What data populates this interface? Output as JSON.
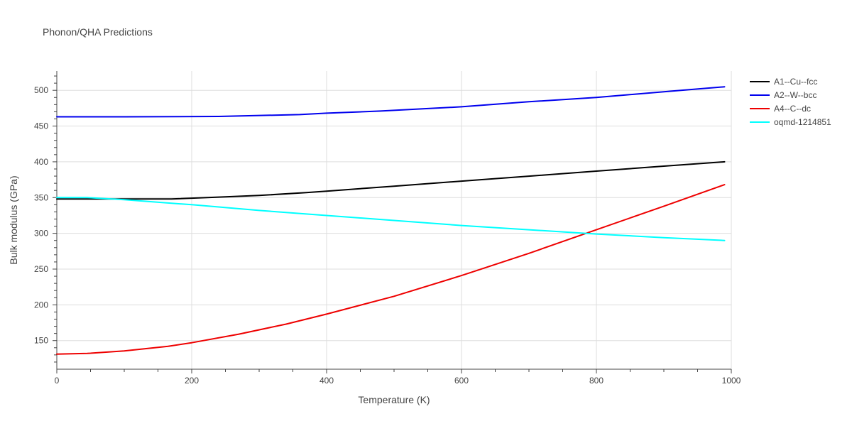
{
  "chart_data": {
    "type": "line",
    "title": "Phonon/QHA Predictions",
    "xlabel": "Temperature (K)",
    "ylabel": "Bulk modulus (GPa)",
    "xlim": [
      0,
      1000
    ],
    "ylim": [
      110,
      527
    ],
    "xticks": [
      0,
      200,
      400,
      600,
      800,
      1000
    ],
    "yticks": [
      150,
      200,
      250,
      300,
      350,
      400,
      450,
      500
    ],
    "grid": true,
    "legend_position": "top-right",
    "series": [
      {
        "name": "A1--Cu--fcc",
        "color": "#000000",
        "x": [
          0,
          50,
          100,
          170,
          250,
          300,
          370,
          400,
          500,
          600,
          700,
          800,
          900,
          990
        ],
        "y": [
          348,
          348,
          348,
          348,
          351,
          353,
          357,
          359,
          366,
          373,
          380,
          387,
          394,
          400
        ]
      },
      {
        "name": "A2--W--bcc",
        "color": "#0000ee",
        "x": [
          0,
          100,
          240,
          360,
          400,
          480,
          600,
          700,
          800,
          900,
          990
        ],
        "y": [
          463,
          463,
          463.5,
          466,
          468,
          471,
          477,
          484,
          490,
          498,
          505
        ]
      },
      {
        "name": "A4--C--dc",
        "color": "#ee0000",
        "x": [
          0,
          45,
          100,
          165,
          200,
          270,
          340,
          400,
          500,
          600,
          700,
          800,
          900,
          990
        ],
        "y": [
          131,
          132,
          135.5,
          142,
          147,
          159,
          173,
          187,
          212,
          241,
          272,
          305,
          338,
          368
        ]
      },
      {
        "name": "oqmd-1214851",
        "color": "#00ffff",
        "x": [
          0,
          45,
          100,
          200,
          300,
          400,
          500,
          600,
          700,
          800,
          900,
          990
        ],
        "y": [
          350,
          350,
          347,
          340,
          332,
          325,
          318,
          311,
          305,
          299,
          294,
          290
        ]
      }
    ]
  }
}
